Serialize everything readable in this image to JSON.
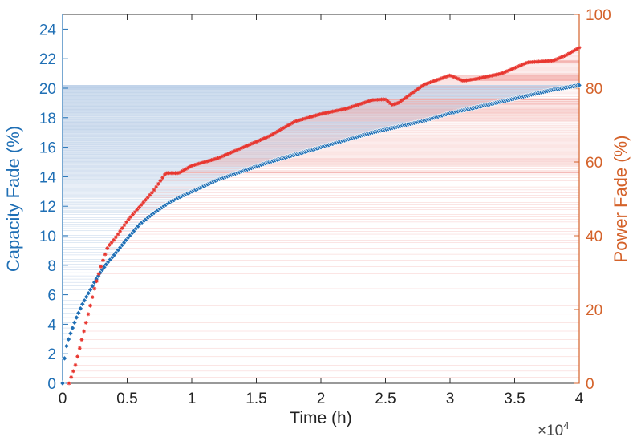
{
  "chart_data": {
    "type": "line",
    "xlabel": "Time (h)",
    "x_multiplier_base": "×10",
    "x_multiplier_exp": "4",
    "x_ticks": [
      "0",
      "0.5",
      "1",
      "1.5",
      "2",
      "2.5",
      "3",
      "3.5",
      "4"
    ],
    "xlim": [
      0,
      4
    ],
    "y_left": {
      "label": "Capacity Fade (%)",
      "lim": [
        0,
        25
      ],
      "ticks": [
        "0",
        "2",
        "4",
        "6",
        "8",
        "10",
        "12",
        "14",
        "16",
        "18",
        "20",
        "22",
        "24"
      ],
      "color": "#1f6fb5"
    },
    "y_right": {
      "label": "Power Fade (%)",
      "lim": [
        0,
        100
      ],
      "ticks": [
        "0",
        "20",
        "40",
        "60",
        "80",
        "100"
      ],
      "color": "#d4622a"
    },
    "grid": false,
    "series": [
      {
        "axis": "left",
        "color": "#1f6fb5",
        "marker": "diamond",
        "x": [
          0,
          0.02,
          0.05,
          0.1,
          0.15,
          0.2,
          0.25,
          0.3,
          0.35,
          0.4,
          0.5,
          0.6,
          0.7,
          0.8,
          0.9,
          1.0,
          1.2,
          1.4,
          1.6,
          1.8,
          2.0,
          2.2,
          2.4,
          2.6,
          2.8,
          3.0,
          3.2,
          3.4,
          3.6,
          3.8,
          4.0
        ],
        "values": [
          0,
          2.2,
          3.1,
          4.3,
          5.3,
          6.1,
          6.9,
          7.6,
          8.2,
          8.7,
          9.8,
          10.8,
          11.5,
          12.1,
          12.6,
          13.0,
          13.8,
          14.4,
          15.0,
          15.5,
          16.0,
          16.5,
          17.0,
          17.4,
          17.8,
          18.3,
          18.7,
          19.1,
          19.5,
          19.9,
          20.2
        ]
      },
      {
        "axis": "right",
        "color": "#e8362f",
        "marker": "asterisk",
        "x": [
          0.05,
          0.1,
          0.15,
          0.2,
          0.25,
          0.3,
          0.35,
          0.4,
          0.5,
          0.6,
          0.7,
          0.8,
          0.9,
          1.0,
          1.2,
          1.4,
          1.6,
          1.8,
          2.0,
          2.2,
          2.4,
          2.5,
          2.55,
          2.6,
          2.8,
          3.0,
          3.1,
          3.2,
          3.4,
          3.6,
          3.8,
          3.9,
          4.0
        ],
        "values": [
          0,
          5,
          12,
          19,
          26,
          32,
          37,
          39,
          44,
          48,
          52,
          57,
          57,
          59,
          61,
          64,
          67,
          71,
          73,
          74.5,
          76.8,
          77,
          75.5,
          76,
          81,
          83.5,
          82,
          82.5,
          84,
          87,
          87.5,
          89,
          91
        ]
      }
    ]
  }
}
